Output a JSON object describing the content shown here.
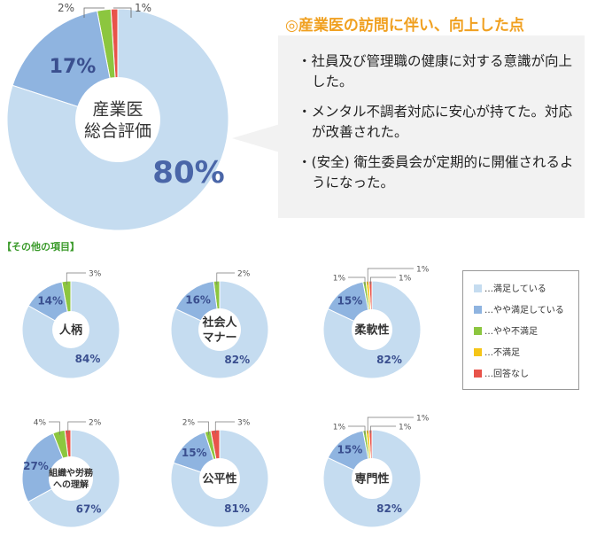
{
  "heading": "◎産業医の訪問に伴い、向上した点",
  "points": [
    "社員及び管理職の健康に対する意識が向上した。",
    "メンタル不調者対応に安心が持てた。対応が改善された。",
    "(安全) 衛生委員会が定期的に開催されるようになった。"
  ],
  "sub_title": "【その他の項目】",
  "legend": [
    "…満足している",
    "…やや満足している",
    "…やや不満足",
    "…不満足",
    "…回答なし"
  ],
  "colors": [
    "#c5dcf0",
    "#8fb4e0",
    "#8cc63f",
    "#f5c518",
    "#e8534a"
  ],
  "chart_data": [
    {
      "type": "pie",
      "title": "産業医\n総合評価",
      "categories": [
        "満足している",
        "やや満足している",
        "やや不満足",
        "不満足",
        "回答なし"
      ],
      "values": [
        80,
        17,
        2,
        0,
        1
      ],
      "labels": [
        "80%",
        "17%",
        "2%",
        "",
        "1%"
      ]
    },
    {
      "type": "pie",
      "title": "人柄",
      "categories": [
        "満足している",
        "やや満足している",
        "やや不満足",
        "不満足",
        "回答なし"
      ],
      "values": [
        84,
        14,
        3,
        0,
        0
      ],
      "labels": [
        "84%",
        "14%",
        "3%",
        "",
        ""
      ]
    },
    {
      "type": "pie",
      "title": "社会人\nマナー",
      "categories": [
        "満足している",
        "やや満足している",
        "やや不満足",
        "不満足",
        "回答なし"
      ],
      "values": [
        82,
        16,
        2,
        0,
        0
      ],
      "labels": [
        "82%",
        "16%",
        "2%",
        "",
        ""
      ]
    },
    {
      "type": "pie",
      "title": "柔軟性",
      "categories": [
        "満足している",
        "やや満足している",
        "やや不満足",
        "不満足",
        "回答なし"
      ],
      "values": [
        82,
        15,
        1,
        1,
        1
      ],
      "labels": [
        "82%",
        "15%",
        "1%",
        "1%",
        "1%"
      ]
    },
    {
      "type": "pie",
      "title": "組織や労務\nへの理解",
      "categories": [
        "満足している",
        "やや満足している",
        "やや不満足",
        "不満足",
        "回答なし"
      ],
      "values": [
        67,
        27,
        4,
        0,
        2
      ],
      "labels": [
        "67%",
        "27%",
        "4%",
        "",
        "2%"
      ]
    },
    {
      "type": "pie",
      "title": "公平性",
      "categories": [
        "満足している",
        "やや満足している",
        "やや不満足",
        "不満足",
        "回答なし"
      ],
      "values": [
        81,
        15,
        2,
        0,
        3
      ],
      "labels": [
        "81%",
        "15%",
        "2%",
        "",
        "3%"
      ]
    },
    {
      "type": "pie",
      "title": "専門性",
      "categories": [
        "満足している",
        "やや満足している",
        "やや不満足",
        "不満足",
        "回答なし"
      ],
      "values": [
        82,
        15,
        1,
        1,
        1
      ],
      "labels": [
        "82%",
        "15%",
        "1%",
        "1%",
        "1%"
      ]
    }
  ]
}
